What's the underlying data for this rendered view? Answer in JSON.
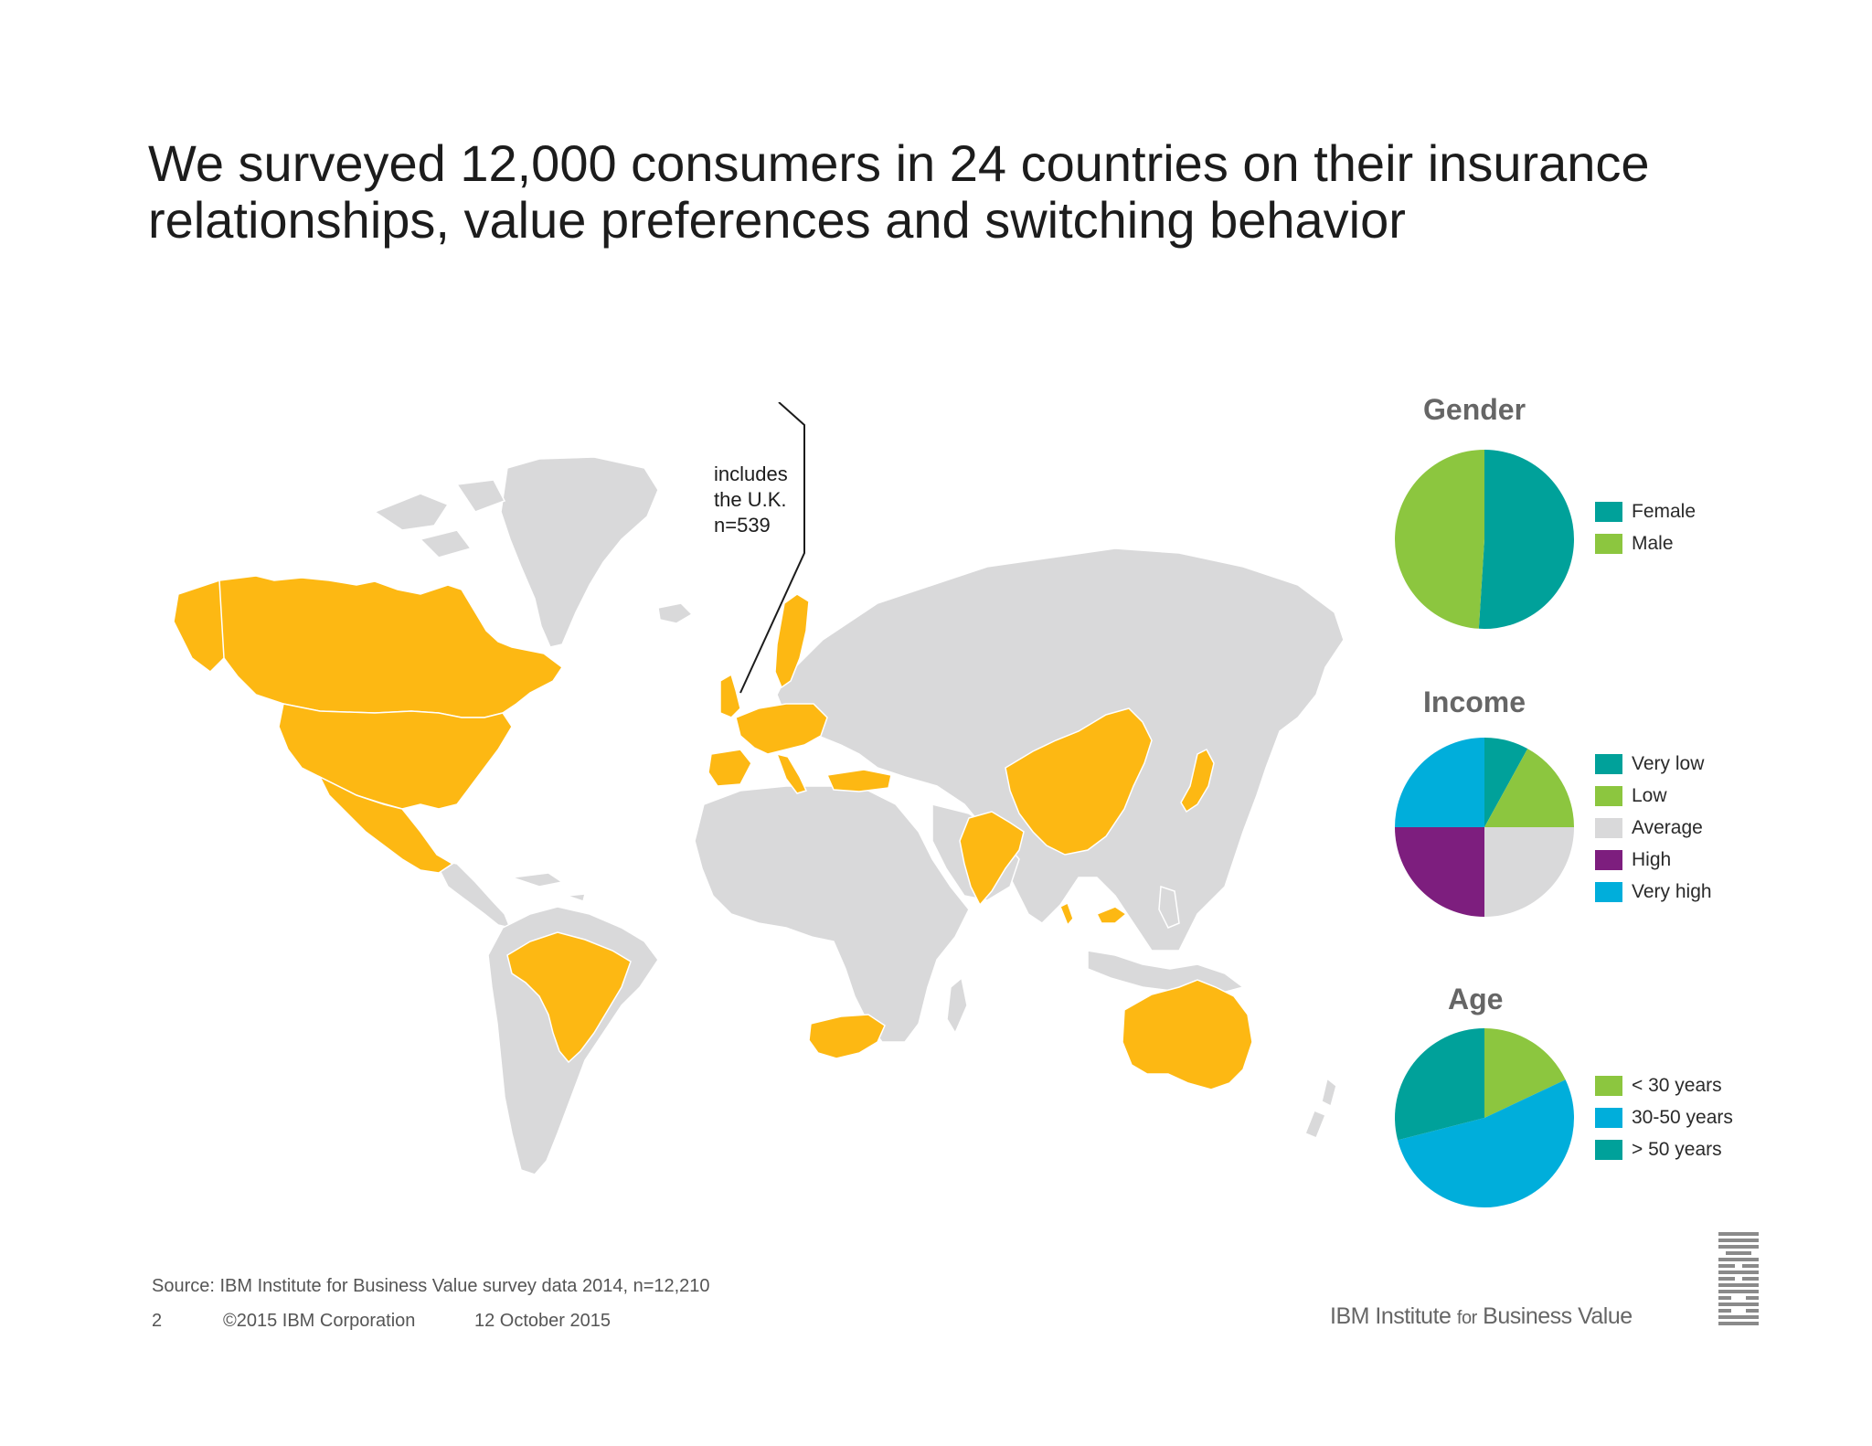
{
  "title_lines": [
    "We surveyed 12,000 consumers in 24 countries on their insurance",
    "relationships, value preferences and switching behavior"
  ],
  "callout": {
    "lines": [
      "includes",
      "the U.K.",
      "n=539"
    ]
  },
  "colors": {
    "highlight": "#FDB813",
    "land": "#D9D9DA",
    "teal": "#00A19A",
    "green": "#8CC63F",
    "gray": "#D9D9DA",
    "purple": "#7D1E7E",
    "blue": "#00AEDB"
  },
  "chart_data": [
    {
      "type": "pie",
      "title": "Gender",
      "series": [
        {
          "name": "Female",
          "value": 51,
          "color": "#00A19A"
        },
        {
          "name": "Male",
          "value": 49,
          "color": "#8CC63F"
        }
      ]
    },
    {
      "type": "pie",
      "title": "Income",
      "series": [
        {
          "name": "Very low",
          "value": 8,
          "color": "#00A19A"
        },
        {
          "name": "Low",
          "value": 17,
          "color": "#8CC63F"
        },
        {
          "name": "Average",
          "value": 25,
          "color": "#D9D9DA"
        },
        {
          "name": "High",
          "value": 25,
          "color": "#7D1E7E"
        },
        {
          "name": "Very high",
          "value": 25,
          "color": "#00AEDB"
        }
      ]
    },
    {
      "type": "pie",
      "title": "Age",
      "series": [
        {
          "name": "< 30 years",
          "value": 18,
          "color": "#8CC63F"
        },
        {
          "name": "30-50 years",
          "value": 53,
          "color": "#00AEDB"
        },
        {
          "name": "> 50 years",
          "value": 29,
          "color": "#00A19A"
        }
      ]
    }
  ],
  "footer": {
    "source": "Source: IBM Institute for Business Value survey data 2014, n=12,210",
    "page_number": "2",
    "copyright": "©2015 IBM Corporation",
    "date": "12 October 2015",
    "brand_main": "IBM Institute ",
    "brand_for": "for",
    "brand_end": " Business Value"
  }
}
